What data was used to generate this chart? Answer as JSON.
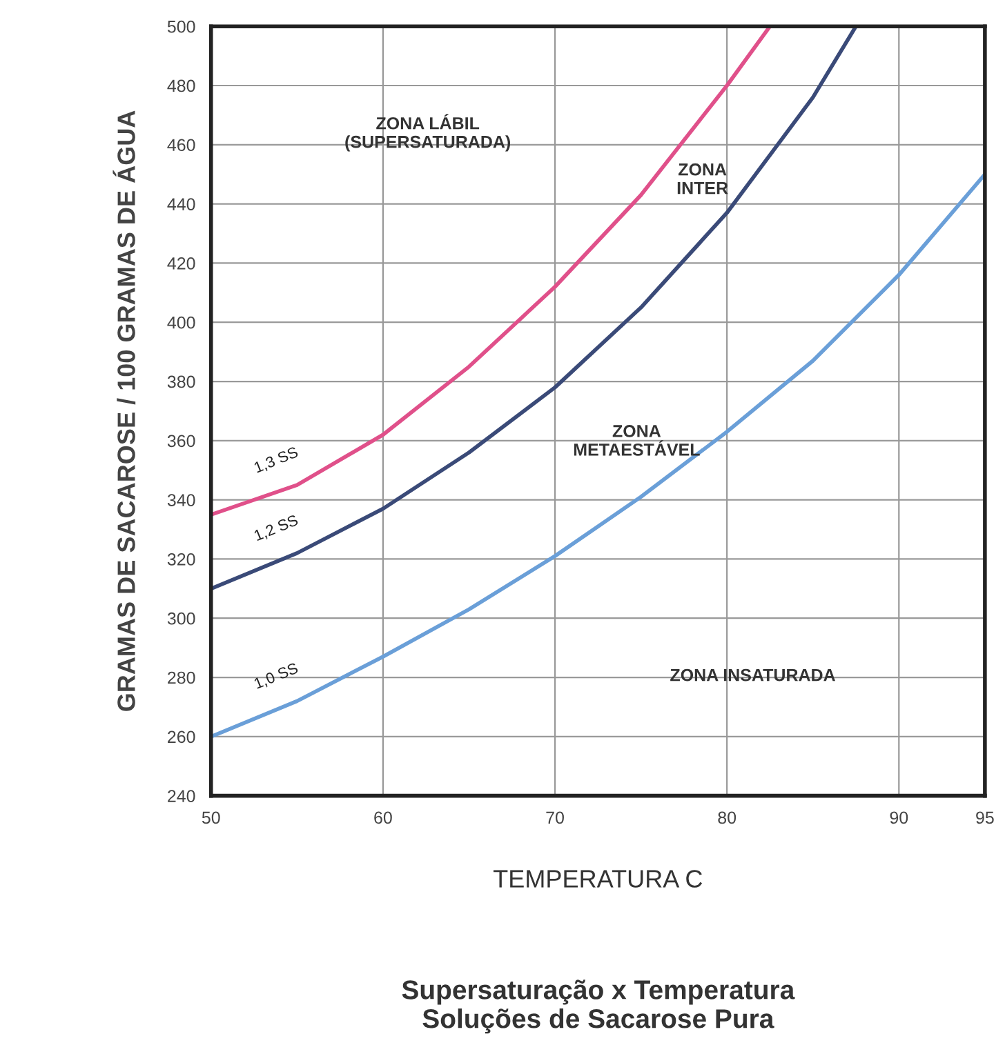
{
  "chart_data": {
    "type": "line",
    "title": "Supersaturação x Temperatura\nSoluções de Sacarose Pura",
    "xlabel": "TEMPERATURA C",
    "ylabel": "GRAMAS DE SACAROSE / 100 GRAMAS DE ÁGUA",
    "xlim": [
      50,
      95
    ],
    "xticks": [
      50,
      60,
      70,
      80,
      90,
      95
    ],
    "ylim": [
      240,
      500
    ],
    "yticks": [
      240,
      260,
      280,
      300,
      320,
      340,
      360,
      380,
      400,
      420,
      440,
      460,
      480,
      500
    ],
    "grid": true,
    "marker": "none",
    "line_style": "solid",
    "series": [
      {
        "name": "1,3 SS",
        "color": "#e0508a",
        "x": [
          50,
          55,
          60,
          65,
          70,
          75,
          80,
          82.5
        ],
        "values": [
          335,
          345,
          362,
          385,
          412,
          443,
          480,
          500
        ]
      },
      {
        "name": "1,2 SS",
        "color": "#3a4a78",
        "x": [
          50,
          55,
          60,
          65,
          70,
          75,
          80,
          85,
          87.5
        ],
        "values": [
          310,
          322,
          337,
          356,
          378,
          405,
          437,
          476,
          500
        ]
      },
      {
        "name": "1,0 SS",
        "color": "#6a9fd8",
        "x": [
          50,
          55,
          60,
          65,
          70,
          75,
          80,
          85,
          90,
          95
        ],
        "values": [
          260,
          272,
          287,
          303,
          321,
          341,
          363,
          387,
          416,
          450
        ]
      }
    ],
    "annotations": [
      "ZONA LÁBIL\n(SUPERSATURADA)",
      "ZONA\nINTER",
      "ZONA\nMETAESTÁVEL",
      "ZONA INSATURADA"
    ]
  }
}
